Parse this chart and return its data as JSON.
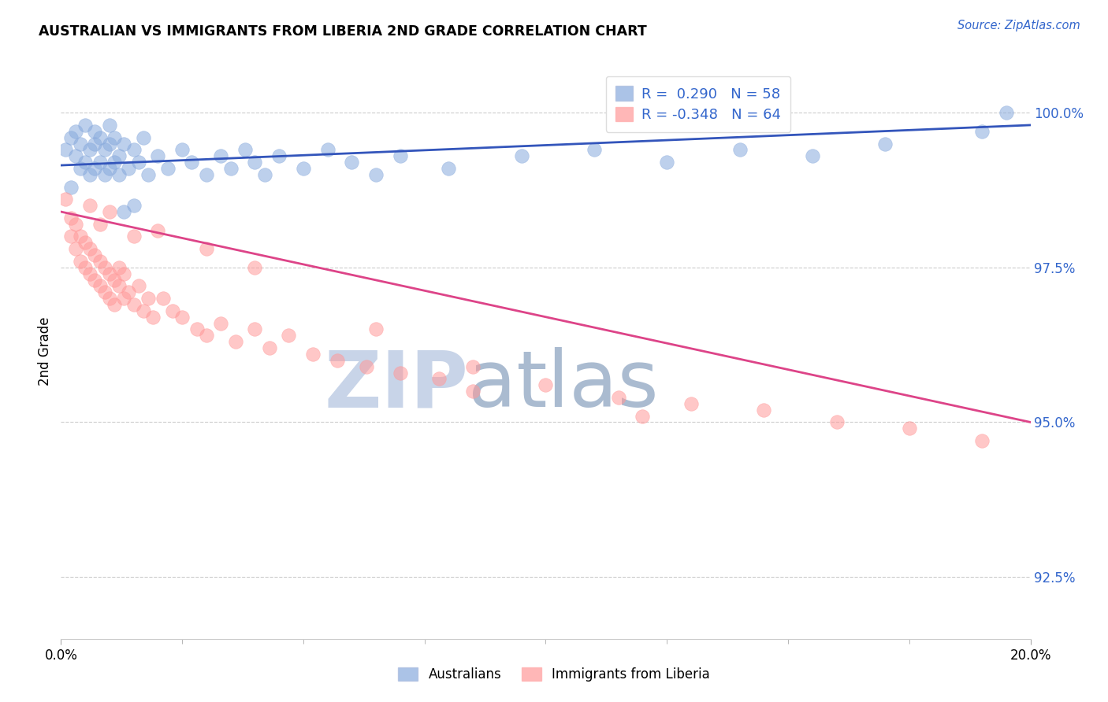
{
  "title": "AUSTRALIAN VS IMMIGRANTS FROM LIBERIA 2ND GRADE CORRELATION CHART",
  "source": "Source: ZipAtlas.com",
  "ylabel": "2nd Grade",
  "yticks": [
    92.5,
    95.0,
    97.5,
    100.0
  ],
  "ytick_labels": [
    "92.5%",
    "95.0%",
    "97.5%",
    "100.0%"
  ],
  "xmin": 0.0,
  "xmax": 0.2,
  "ymin": 91.5,
  "ymax": 100.8,
  "legend_line1": "R =  0.290   N = 58",
  "legend_line2": "R = -0.348   N = 64",
  "color_blue": "#88AADD",
  "color_pink": "#FF9999",
  "trend_blue": "#3355BB",
  "trend_pink": "#DD4488",
  "watermark_zip": "ZIP",
  "watermark_atlas": "atlas",
  "watermark_color_zip": "#C8D4E8",
  "watermark_color_atlas": "#AABBD0",
  "blue_trend_y0": 99.15,
  "blue_trend_y1": 99.8,
  "pink_trend_y0": 98.4,
  "pink_trend_y1": 95.0,
  "blue_scatter_x": [
    0.001,
    0.002,
    0.002,
    0.003,
    0.003,
    0.004,
    0.004,
    0.005,
    0.005,
    0.006,
    0.006,
    0.007,
    0.007,
    0.007,
    0.008,
    0.008,
    0.009,
    0.009,
    0.01,
    0.01,
    0.01,
    0.011,
    0.011,
    0.012,
    0.012,
    0.013,
    0.014,
    0.015,
    0.016,
    0.017,
    0.018,
    0.02,
    0.022,
    0.025,
    0.027,
    0.03,
    0.033,
    0.035,
    0.038,
    0.04,
    0.042,
    0.045,
    0.05,
    0.055,
    0.06,
    0.065,
    0.07,
    0.08,
    0.095,
    0.11,
    0.125,
    0.14,
    0.155,
    0.17,
    0.19,
    0.015,
    0.013,
    0.195
  ],
  "blue_scatter_y": [
    99.4,
    99.6,
    98.8,
    99.3,
    99.7,
    99.1,
    99.5,
    99.2,
    99.8,
    99.0,
    99.4,
    99.1,
    99.5,
    99.7,
    99.2,
    99.6,
    99.0,
    99.4,
    99.1,
    99.5,
    99.8,
    99.2,
    99.6,
    99.0,
    99.3,
    99.5,
    99.1,
    99.4,
    99.2,
    99.6,
    99.0,
    99.3,
    99.1,
    99.4,
    99.2,
    99.0,
    99.3,
    99.1,
    99.4,
    99.2,
    99.0,
    99.3,
    99.1,
    99.4,
    99.2,
    99.0,
    99.3,
    99.1,
    99.3,
    99.4,
    99.2,
    99.4,
    99.3,
    99.5,
    99.7,
    98.5,
    98.4,
    100.0
  ],
  "pink_scatter_x": [
    0.001,
    0.002,
    0.002,
    0.003,
    0.003,
    0.004,
    0.004,
    0.005,
    0.005,
    0.006,
    0.006,
    0.007,
    0.007,
    0.008,
    0.008,
    0.009,
    0.009,
    0.01,
    0.01,
    0.011,
    0.011,
    0.012,
    0.012,
    0.013,
    0.013,
    0.014,
    0.015,
    0.016,
    0.017,
    0.018,
    0.019,
    0.021,
    0.023,
    0.025,
    0.028,
    0.03,
    0.033,
    0.036,
    0.04,
    0.043,
    0.047,
    0.052,
    0.057,
    0.063,
    0.07,
    0.078,
    0.085,
    0.1,
    0.115,
    0.13,
    0.145,
    0.16,
    0.175,
    0.19,
    0.085,
    0.065,
    0.04,
    0.03,
    0.02,
    0.01,
    0.008,
    0.006,
    0.015,
    0.12
  ],
  "pink_scatter_y": [
    98.6,
    98.3,
    98.0,
    97.8,
    98.2,
    97.6,
    98.0,
    97.5,
    97.9,
    97.4,
    97.8,
    97.3,
    97.7,
    97.2,
    97.6,
    97.1,
    97.5,
    97.0,
    97.4,
    96.9,
    97.3,
    97.2,
    97.5,
    97.0,
    97.4,
    97.1,
    96.9,
    97.2,
    96.8,
    97.0,
    96.7,
    97.0,
    96.8,
    96.7,
    96.5,
    96.4,
    96.6,
    96.3,
    96.5,
    96.2,
    96.4,
    96.1,
    96.0,
    95.9,
    95.8,
    95.7,
    95.5,
    95.6,
    95.4,
    95.3,
    95.2,
    95.0,
    94.9,
    94.7,
    95.9,
    96.5,
    97.5,
    97.8,
    98.1,
    98.4,
    98.2,
    98.5,
    98.0,
    95.1
  ]
}
